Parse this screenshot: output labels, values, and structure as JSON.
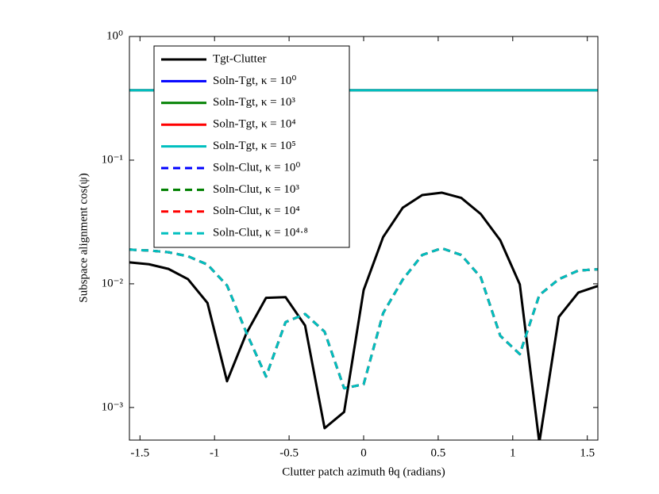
{
  "chart_data": {
    "type": "line",
    "xlabel": "Clutter patch azimuth θq (radians)",
    "ylabel": "Subspace alignment cos(ψ)",
    "x": [
      -1.5708,
      -1.4399,
      -1.309,
      -1.1781,
      -1.0472,
      -0.9163,
      -0.7854,
      -0.6545,
      -0.5236,
      -0.3927,
      -0.2618,
      -0.1309,
      0,
      0.1309,
      0.2618,
      0.3927,
      0.5236,
      0.6545,
      0.7854,
      0.9163,
      1.0472,
      1.1781,
      1.309,
      1.4399,
      1.5708
    ],
    "xlim": [
      -1.5708,
      1.5708
    ],
    "xticks": [
      -1.5,
      -1,
      -0.5,
      0,
      0.5,
      1,
      1.5
    ],
    "ylim": [
      0.000545,
      1
    ],
    "yscale": "log",
    "yticks": [
      {
        "value": 0.001,
        "label": "10⁻³"
      },
      {
        "value": 0.01,
        "label": "10⁻²"
      },
      {
        "value": 0.1,
        "label": "10⁻¹"
      },
      {
        "value": 1,
        "label": "10⁰"
      }
    ],
    "grid": false,
    "legend": "upper left",
    "series": [
      {
        "name": "Tgt-Clutter",
        "color": "#000000",
        "dash": false,
        "values": [
          0.0149,
          0.0144,
          0.0132,
          0.0109,
          0.007,
          0.00163,
          0.004,
          0.0077,
          0.0078,
          0.0046,
          0.00068,
          0.00092,
          0.0089,
          0.0239,
          0.0412,
          0.0522,
          0.0546,
          0.0495,
          0.0367,
          0.0225,
          0.0099,
          0.00052,
          0.0054,
          0.0085,
          0.0096
        ]
      },
      {
        "name": "Soln-Tgt, κ = 10⁰",
        "color": "#0000ff",
        "dash": false,
        "values": [
          0.367,
          0.367,
          0.367,
          0.367,
          0.367,
          0.367,
          0.367,
          0.367,
          0.367,
          0.367,
          0.367,
          0.367,
          0.367,
          0.367,
          0.367,
          0.367,
          0.367,
          0.367,
          0.367,
          0.367,
          0.367,
          0.367,
          0.367,
          0.367,
          0.367
        ]
      },
      {
        "name": "Soln-Tgt, κ = 10³",
        "color": "#008000",
        "dash": false,
        "values": [
          0.367,
          0.367,
          0.367,
          0.367,
          0.367,
          0.367,
          0.367,
          0.367,
          0.367,
          0.367,
          0.367,
          0.367,
          0.367,
          0.367,
          0.367,
          0.367,
          0.367,
          0.367,
          0.367,
          0.367,
          0.367,
          0.367,
          0.367,
          0.367,
          0.367
        ]
      },
      {
        "name": "Soln-Tgt, κ = 10⁴",
        "color": "#ff0000",
        "dash": false,
        "values": [
          0.367,
          0.367,
          0.367,
          0.367,
          0.367,
          0.367,
          0.367,
          0.367,
          0.367,
          0.367,
          0.367,
          0.367,
          0.367,
          0.367,
          0.367,
          0.367,
          0.367,
          0.367,
          0.367,
          0.367,
          0.367,
          0.367,
          0.367,
          0.367,
          0.367
        ]
      },
      {
        "name": "Soln-Tgt, κ = 10⁵",
        "color": "#00bfbf",
        "dash": false,
        "values": [
          0.367,
          0.367,
          0.367,
          0.367,
          0.367,
          0.367,
          0.367,
          0.367,
          0.367,
          0.367,
          0.367,
          0.367,
          0.367,
          0.367,
          0.367,
          0.367,
          0.367,
          0.367,
          0.367,
          0.367,
          0.367,
          0.367,
          0.367,
          0.367,
          0.367
        ]
      },
      {
        "name": "Soln-Clut, κ = 10⁰",
        "color": "#0000ff",
        "dash": true,
        "values": [
          0.0189,
          0.0186,
          0.018,
          0.0167,
          0.0143,
          0.0097,
          0.004,
          0.00178,
          0.0049,
          0.0057,
          0.0041,
          0.00143,
          0.00154,
          0.0058,
          0.0108,
          0.0171,
          0.0194,
          0.0171,
          0.0113,
          0.0038,
          0.0027,
          0.0081,
          0.0109,
          0.0128,
          0.0131
        ]
      },
      {
        "name": "Soln-Clut, κ = 10³",
        "color": "#008000",
        "dash": true,
        "values": [
          0.0189,
          0.0186,
          0.018,
          0.0167,
          0.0143,
          0.0097,
          0.004,
          0.00178,
          0.0049,
          0.0057,
          0.0041,
          0.00143,
          0.00154,
          0.0058,
          0.0108,
          0.0171,
          0.0194,
          0.0171,
          0.0113,
          0.0038,
          0.0027,
          0.0081,
          0.0109,
          0.0128,
          0.0131
        ]
      },
      {
        "name": "Soln-Clut, κ = 10⁴",
        "color": "#ff0000",
        "dash": true,
        "values": [
          0.0189,
          0.0186,
          0.018,
          0.0167,
          0.0143,
          0.0097,
          0.004,
          0.00178,
          0.0049,
          0.0057,
          0.0041,
          0.00143,
          0.00154,
          0.0058,
          0.0108,
          0.0171,
          0.0194,
          0.0171,
          0.0113,
          0.0038,
          0.0027,
          0.0081,
          0.0109,
          0.0128,
          0.0131
        ]
      },
      {
        "name": "Soln-Clut, κ = 10⁴·⁸",
        "color": "#00bfbf",
        "dash": true,
        "values": [
          0.0189,
          0.0186,
          0.018,
          0.0167,
          0.0143,
          0.0097,
          0.004,
          0.00178,
          0.0049,
          0.0057,
          0.0041,
          0.00143,
          0.00154,
          0.0058,
          0.0108,
          0.0171,
          0.0194,
          0.0171,
          0.0113,
          0.0038,
          0.0027,
          0.0081,
          0.0109,
          0.0128,
          0.0131
        ]
      }
    ]
  }
}
